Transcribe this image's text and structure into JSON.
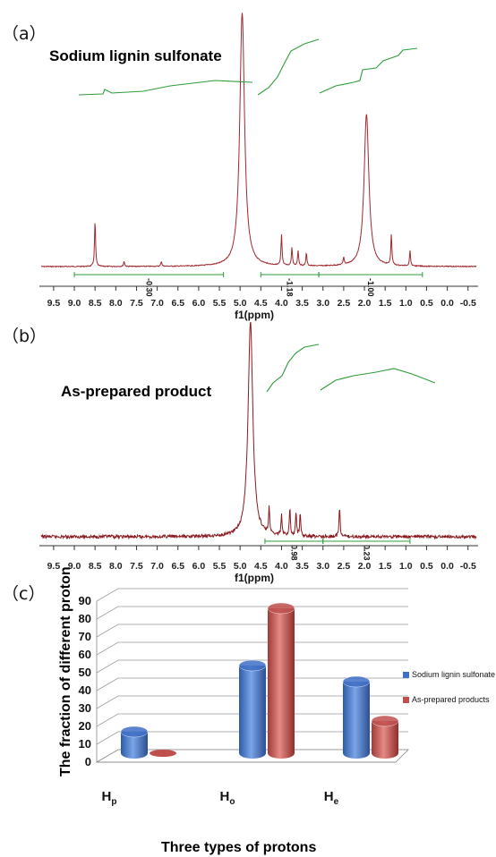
{
  "chart_data": [
    {
      "type": "line",
      "panel_label": "（a）",
      "title": "Sodium lignin sulfonate",
      "xlabel": "f1(ppm)",
      "x_ticks": [
        "9.5",
        "9.0",
        "8.5",
        "8.0",
        "7.5",
        "7.0",
        "6.5",
        "6.0",
        "5.5",
        "5.0",
        "4.5",
        "4.0",
        "3.5",
        "3.0",
        "2.5",
        "2.0",
        "1.5",
        "1.0",
        "0.5",
        "0.0",
        "-0.5"
      ],
      "xlim": [
        9.8,
        -0.7
      ],
      "x_reversed": true,
      "peaks": [
        {
          "x": 8.5,
          "height": 0.18
        },
        {
          "x": 7.8,
          "height": 0.02
        },
        {
          "x": 6.9,
          "height": 0.02
        },
        {
          "x": 4.95,
          "height": 1.0
        },
        {
          "x": 4.0,
          "height": 0.12
        },
        {
          "x": 3.75,
          "height": 0.07
        },
        {
          "x": 3.6,
          "height": 0.06
        },
        {
          "x": 3.4,
          "height": 0.05
        },
        {
          "x": 2.5,
          "height": 0.03
        },
        {
          "x": 1.95,
          "height": 0.6
        },
        {
          "x": 1.35,
          "height": 0.12
        },
        {
          "x": 0.9,
          "height": 0.06
        }
      ],
      "integrals": [
        {
          "label": "-0.30",
          "from": 9.0,
          "to": 5.4
        },
        {
          "label": "-1.18",
          "from": 4.5,
          "to": 3.1
        },
        {
          "label": "-1.00",
          "from": 3.1,
          "to": 0.6
        }
      ],
      "spectrum_color": "#a0282e",
      "integral_color": "#2f9c3a"
    },
    {
      "type": "line",
      "panel_label": "（b）",
      "title": "As-prepared product",
      "xlabel": "f1(ppm)",
      "x_ticks": [
        "9.5",
        "9.0",
        "8.5",
        "8.0",
        "7.5",
        "7.0",
        "6.5",
        "6.0",
        "5.5",
        "5.0",
        "4.5",
        "4.0",
        "3.5",
        "3.0",
        "2.5",
        "2.0",
        "1.5",
        "1.0",
        "0.5",
        "0.0",
        "-0.5"
      ],
      "xlim": [
        9.8,
        -0.7
      ],
      "x_reversed": true,
      "peaks": [
        {
          "x": 4.75,
          "height": 1.0
        },
        {
          "x": 4.3,
          "height": 0.12
        },
        {
          "x": 4.0,
          "height": 0.1
        },
        {
          "x": 3.8,
          "height": 0.13
        },
        {
          "x": 3.65,
          "height": 0.11
        },
        {
          "x": 3.55,
          "height": 0.1
        },
        {
          "x": 2.6,
          "height": 0.14
        }
      ],
      "integrals": [
        {
          "label": "0.98",
          "from": 4.4,
          "to": 3.0
        },
        {
          "label": "0.23",
          "from": 3.0,
          "to": 0.9
        }
      ],
      "spectrum_color": "#8b1a1f",
      "integral_color": "#2f9c3a"
    },
    {
      "type": "bar",
      "panel_label": "（c）",
      "categories": [
        {
          "main": "H",
          "sub": "p"
        },
        {
          "main": "H",
          "sub": "o"
        },
        {
          "main": "H",
          "sub": "e"
        }
      ],
      "series": [
        {
          "name": "Sodium lignin sulfonate",
          "values": [
            12,
            49,
            40
          ],
          "color": "#3f6fc6"
        },
        {
          "name": "As-prepared products",
          "values": [
            0,
            81,
            18
          ],
          "color": "#c0504d"
        }
      ],
      "xlabel": "Three types of protons",
      "ylabel": "The fraction of different proton",
      "ylim": [
        0,
        90
      ],
      "y_ticks": [
        "0",
        "10",
        "20",
        "30",
        "40",
        "50",
        "60",
        "70",
        "80",
        "90"
      ],
      "grid": true,
      "legend_position": "right"
    }
  ]
}
